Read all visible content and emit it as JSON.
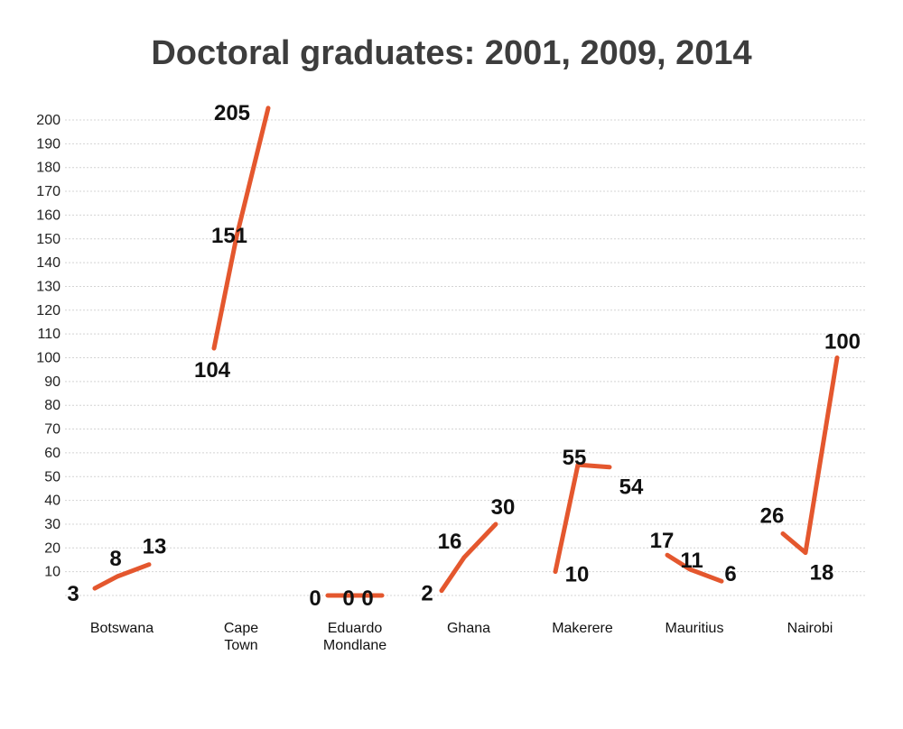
{
  "chart_data": {
    "type": "line",
    "title": "Doctoral graduates: 2001, 2009, 2014",
    "xlabel": "",
    "ylabel": "",
    "years": [
      "2001",
      "2009",
      "2014"
    ],
    "ylim": [
      0,
      200
    ],
    "yticks": [
      10,
      20,
      30,
      40,
      50,
      60,
      70,
      80,
      90,
      100,
      110,
      120,
      130,
      140,
      150,
      160,
      170,
      180,
      190,
      200
    ],
    "grid": true,
    "line_color": "#e4572e",
    "categories": [
      {
        "label": [
          "Botswana"
        ],
        "values": [
          3,
          8,
          13
        ]
      },
      {
        "label": [
          "Cape",
          "Town"
        ],
        "values": [
          104,
          151,
          205
        ]
      },
      {
        "label": [
          "Eduardo",
          "Mondlane"
        ],
        "values": [
          0,
          0,
          0
        ]
      },
      {
        "label": [
          "Ghana"
        ],
        "values": [
          2,
          16,
          30
        ]
      },
      {
        "label": [
          "Makerere"
        ],
        "values": [
          10,
          55,
          54
        ]
      },
      {
        "label": [
          "Mauritius"
        ],
        "values": [
          17,
          11,
          6
        ]
      },
      {
        "label": [
          "Nairobi"
        ],
        "values": [
          26,
          18,
          100
        ]
      }
    ]
  }
}
